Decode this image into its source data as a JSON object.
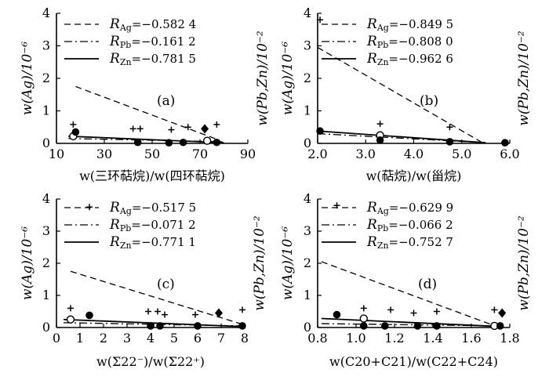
{
  "chart_data": [
    {
      "panel": "(a)",
      "type": "scatter",
      "xlabel": "w(三环萜烷)/w(四环萜烷)",
      "ylabel_left": "w(Ag)/10⁻⁶",
      "ylabel_right": "w(Pb,Zn)/10⁻²",
      "xlim": [
        10,
        90
      ],
      "ylim": [
        0,
        4
      ],
      "xticks": [
        "10",
        "30",
        "50",
        "70",
        "90"
      ],
      "yticks": [
        "0",
        "1",
        "2",
        "3",
        "4"
      ],
      "legend": [
        {
          "sym": "R",
          "sub": "Ag",
          "value": "=−0.582 4",
          "style": "dashed"
        },
        {
          "sym": "R",
          "sub": "Pb",
          "value": "=−0.161 2",
          "style": "dashdot"
        },
        {
          "sym": "R",
          "sub": "Zn",
          "value": "=−0.781 5",
          "style": "solid"
        }
      ],
      "series": [
        {
          "marker": "plus",
          "points": [
            [
              17,
              0.58
            ],
            [
              42,
              0.45
            ],
            [
              45,
              0.45
            ],
            [
              58,
              0.42
            ],
            [
              65,
              0.5
            ],
            [
              77,
              0.58
            ]
          ]
        },
        {
          "marker": "open_circle",
          "points": [
            [
              17,
              0.22
            ],
            [
              73,
              0.08
            ]
          ]
        },
        {
          "marker": "filled_circle",
          "points": [
            [
              18,
              0.35
            ],
            [
              44,
              0.03
            ],
            [
              57,
              0.02
            ],
            [
              63,
              0.03
            ],
            [
              77,
              0.03
            ]
          ]
        },
        {
          "marker": "filled_diamond",
          "points": [
            [
              72,
              0.45
            ]
          ]
        }
      ],
      "lines": [
        {
          "style": "dashed",
          "from": [
            18,
            1.75
          ],
          "to": [
            78,
            0.1
          ]
        },
        {
          "style": "dashdot",
          "from": [
            15,
            0.15
          ],
          "to": [
            80,
            0.05
          ]
        },
        {
          "style": "solid",
          "from": [
            15,
            0.22
          ],
          "to": [
            80,
            0.02
          ]
        }
      ]
    },
    {
      "panel": "(b)",
      "type": "scatter",
      "xlabel": "w(萜烷)/w(甾烷)",
      "ylabel_left": "w(Ag)/10⁻⁶",
      "ylabel_right": "w(Pb,Zn)/10⁻²",
      "xlim": [
        2.0,
        6.0
      ],
      "ylim": [
        0,
        4
      ],
      "xticks": [
        "2.0",
        "3.0",
        "4.0",
        "5.0",
        "6.0"
      ],
      "yticks": [
        "0",
        "1",
        "2",
        "3",
        "4"
      ],
      "legend": [
        {
          "sym": "R",
          "sub": "Ag",
          "value": "=−0.849 5",
          "style": "dashed"
        },
        {
          "sym": "R",
          "sub": "Pb",
          "value": "=−0.808 0",
          "style": "dashdot"
        },
        {
          "sym": "R",
          "sub": "Zn",
          "value": "=−0.962 6",
          "style": "solid"
        }
      ],
      "series": [
        {
          "marker": "plus",
          "points": [
            [
              2.05,
              3.8
            ],
            [
              3.3,
              0.6
            ],
            [
              4.75,
              0.5
            ]
          ]
        },
        {
          "marker": "open_circle",
          "points": [
            [
              3.3,
              0.25
            ]
          ]
        },
        {
          "marker": "filled_circle",
          "points": [
            [
              2.05,
              0.38
            ],
            [
              3.3,
              0.1
            ],
            [
              4.75,
              0.05
            ],
            [
              5.9,
              0.02
            ]
          ]
        }
      ],
      "lines": [
        {
          "style": "dashed",
          "from": [
            2.0,
            2.95
          ],
          "to": [
            5.4,
            0.05
          ]
        },
        {
          "style": "dashdot",
          "from": [
            2.0,
            0.3
          ],
          "to": [
            5.5,
            0.02
          ]
        },
        {
          "style": "solid",
          "from": [
            2.0,
            0.38
          ],
          "to": [
            5.5,
            0.02
          ]
        }
      ]
    },
    {
      "panel": "(c)",
      "type": "scatter",
      "xlabel": "w(Σ22⁻)/w(Σ22⁺)",
      "ylabel_left": "w(Ag)/10⁻⁶",
      "ylabel_right": "w(Pb,Zn)/10⁻²",
      "xlim": [
        0,
        8
      ],
      "ylim": [
        0,
        4
      ],
      "xticks": [
        "0",
        "1",
        "2",
        "3",
        "4",
        "5",
        "6",
        "7",
        "8"
      ],
      "yticks": [
        "0",
        "1",
        "2",
        "3",
        "4"
      ],
      "legend": [
        {
          "sym": "R",
          "sub": "Ag",
          "value": "=−0.517 5",
          "style": "dashed"
        },
        {
          "sym": "R",
          "sub": "Pb",
          "value": "=−0.071 2",
          "style": "dashdot"
        },
        {
          "sym": "R",
          "sub": "Zn",
          "value": "=−0.771 1",
          "style": "solid"
        }
      ],
      "series": [
        {
          "marker": "plus",
          "points": [
            [
              0.6,
              0.6
            ],
            [
              1.4,
              3.75
            ],
            [
              3.9,
              0.5
            ],
            [
              4.3,
              0.5
            ],
            [
              4.6,
              0.4
            ],
            [
              5.9,
              0.4
            ],
            [
              7.9,
              0.55
            ]
          ]
        },
        {
          "marker": "open_circle",
          "points": [
            [
              0.6,
              0.25
            ]
          ]
        },
        {
          "marker": "filled_circle",
          "points": [
            [
              1.4,
              0.38
            ],
            [
              4.0,
              0.05
            ],
            [
              4.4,
              0.05
            ],
            [
              6.0,
              0.05
            ],
            [
              7.9,
              0.05
            ]
          ]
        },
        {
          "marker": "filled_diamond",
          "points": [
            [
              6.9,
              0.45
            ]
          ]
        }
      ],
      "lines": [
        {
          "style": "dashed",
          "from": [
            0.6,
            1.75
          ],
          "to": [
            7.9,
            0.1
          ]
        },
        {
          "style": "dashdot",
          "from": [
            0.3,
            0.15
          ],
          "to": [
            7.9,
            0.05
          ]
        },
        {
          "style": "solid",
          "from": [
            0.3,
            0.25
          ],
          "to": [
            7.9,
            0.03
          ]
        }
      ]
    },
    {
      "panel": "(d)",
      "type": "scatter",
      "xlabel": "w(C20+C21)/w(C22+C24)",
      "ylabel_left": "w(Ag)/10⁻⁶",
      "ylabel_right": "w(Pb,Zn)/10⁻²",
      "xlim": [
        0.8,
        1.8
      ],
      "ylim": [
        0,
        4
      ],
      "xticks": [
        "0.8",
        "1.0",
        "1.2",
        "1.4",
        "1.6",
        "1.8"
      ],
      "yticks": [
        "0",
        "1",
        "2",
        "3",
        "4"
      ],
      "legend": [
        {
          "sym": "R",
          "sub": "Ag",
          "value": "=−0.629 9",
          "style": "dashed"
        },
        {
          "sym": "R",
          "sub": "Pb",
          "value": "=−0.066 2",
          "style": "dashdot"
        },
        {
          "sym": "R",
          "sub": "Zn",
          "value": "=−0.752 7",
          "style": "solid"
        }
      ],
      "series": [
        {
          "marker": "plus",
          "points": [
            [
              0.9,
              3.8
            ],
            [
              1.04,
              0.6
            ],
            [
              1.18,
              0.55
            ],
            [
              1.3,
              0.45
            ],
            [
              1.42,
              0.5
            ],
            [
              1.72,
              0.55
            ]
          ]
        },
        {
          "marker": "open_circle",
          "points": [
            [
              1.04,
              0.28
            ],
            [
              1.72,
              0.05
            ]
          ]
        },
        {
          "marker": "filled_circle",
          "points": [
            [
              0.9,
              0.4
            ],
            [
              1.04,
              0.05
            ],
            [
              1.15,
              0.05
            ],
            [
              1.32,
              0.05
            ],
            [
              1.42,
              0.05
            ],
            [
              1.75,
              0.05
            ]
          ]
        },
        {
          "marker": "filled_diamond",
          "points": [
            [
              1.76,
              0.45
            ]
          ]
        }
      ],
      "lines": [
        {
          "style": "dashed",
          "from": [
            0.82,
            2.05
          ],
          "to": [
            1.7,
            0.1
          ]
        },
        {
          "style": "dashdot",
          "from": [
            0.82,
            0.12
          ],
          "to": [
            1.75,
            0.05
          ]
        },
        {
          "style": "solid",
          "from": [
            0.82,
            0.28
          ],
          "to": [
            1.75,
            0.03
          ]
        }
      ]
    }
  ]
}
